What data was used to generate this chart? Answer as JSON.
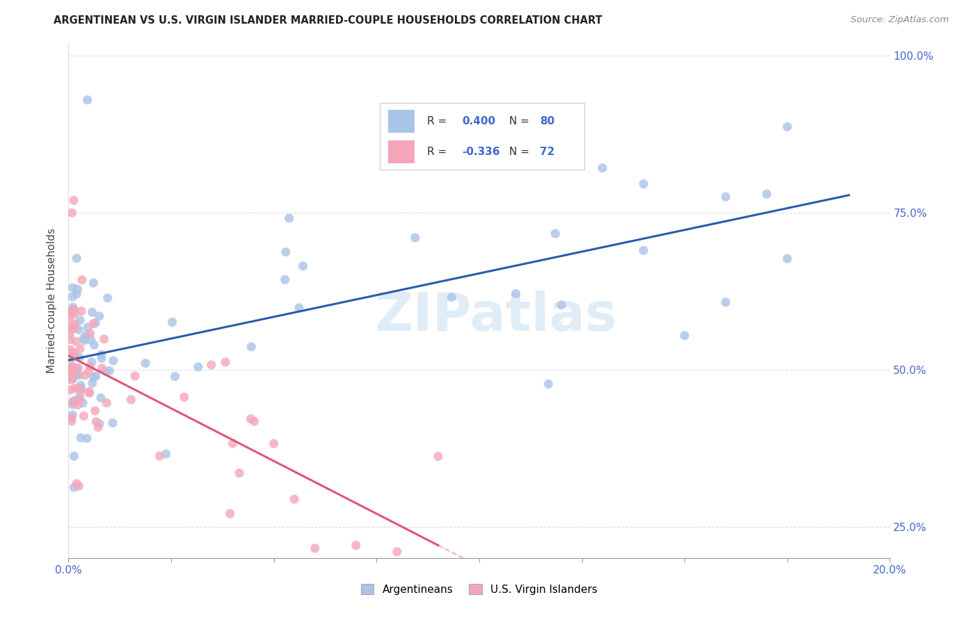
{
  "title": "ARGENTINEAN VS U.S. VIRGIN ISLANDER MARRIED-COUPLE HOUSEHOLDS CORRELATION CHART",
  "source": "Source: ZipAtlas.com",
  "ylabel": "Married-couple Households",
  "xlim": [
    0.0,
    0.2
  ],
  "ylim": [
    0.2,
    1.02
  ],
  "blue_color": "#aac4e8",
  "pink_color": "#f4a7b9",
  "blue_line_color": "#2a5caa",
  "pink_line_color": "#e05575",
  "legend_label_blue": "Argentineans",
  "legend_label_pink": "U.S. Virgin Islanders",
  "watermark": "ZIPatlas",
  "blue_R": "0.400",
  "blue_N": "80",
  "pink_R": "-0.336",
  "pink_N": "72",
  "grid_color": "#cccccc"
}
